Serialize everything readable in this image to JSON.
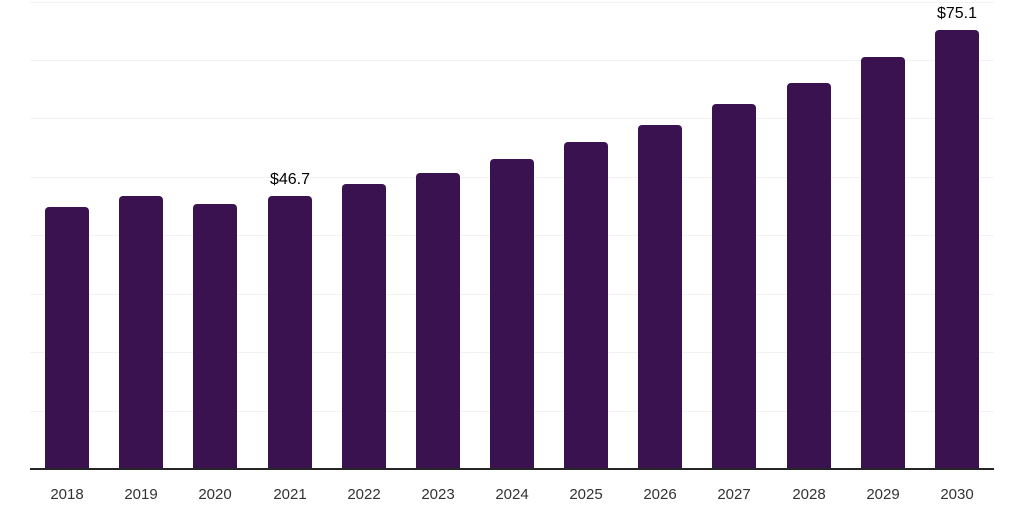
{
  "chart_data": {
    "type": "bar",
    "title": "",
    "xlabel": "",
    "ylabel": "",
    "categories": [
      "2018",
      "2019",
      "2020",
      "2021",
      "2022",
      "2023",
      "2024",
      "2025",
      "2026",
      "2027",
      "2028",
      "2029",
      "2030"
    ],
    "values": [
      44.9,
      46.8,
      45.3,
      46.7,
      48.7,
      50.7,
      53.1,
      55.9,
      58.9,
      62.4,
      66.1,
      70.5,
      75.1
    ],
    "data_labels": {
      "2021": "$46.7",
      "2030": "$75.1"
    },
    "ylim": [
      0,
      80
    ],
    "gridline_interval": 10,
    "grid": true,
    "legend": "none",
    "y_axis_tick_labels_visible": false,
    "colors": {
      "bar": "#3A1250",
      "gridline": "#F2F2F2",
      "axis_line": "#262626",
      "tick_label": "#333333",
      "value_label": "#000000",
      "background": "#FFFFFF"
    }
  }
}
